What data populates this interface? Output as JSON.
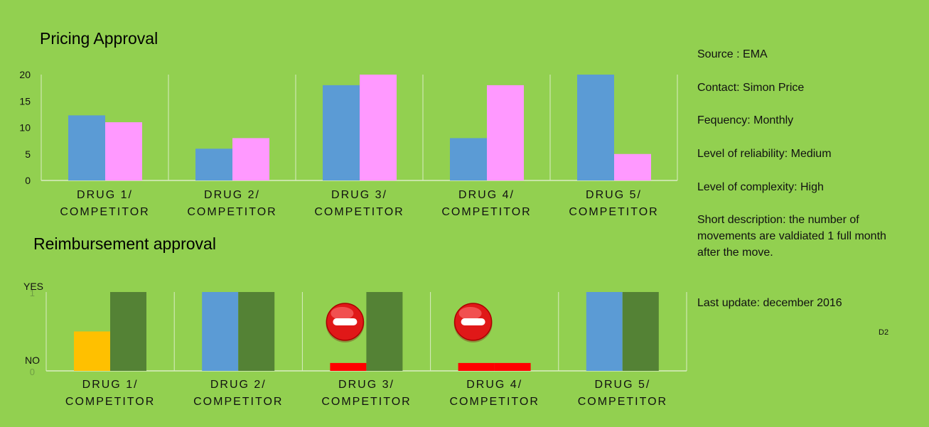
{
  "chart_data": [
    {
      "type": "bar",
      "title": "Pricing Approval",
      "categories": [
        "DRUG 1/ COMPETITOR",
        "DRUG 2/ COMPETITOR",
        "DRUG 3/ COMPETITOR",
        "DRUG 4/ COMPETITOR",
        "DRUG 5/ COMPETITOR"
      ],
      "category_lines": [
        [
          "DRUG 1/",
          "COMPETITOR"
        ],
        [
          "DRUG 2/",
          "COMPETITOR"
        ],
        [
          "DRUG 3/",
          "COMPETITOR"
        ],
        [
          "DRUG 4/",
          "COMPETITOR"
        ],
        [
          "DRUG 5/",
          "COMPETITOR"
        ]
      ],
      "series": [
        {
          "values": [
            12.3,
            6,
            18,
            8,
            20
          ],
          "color": "#5b9bd5"
        },
        {
          "values": [
            11,
            8,
            20,
            18,
            5
          ],
          "color": "#ff99ff"
        }
      ],
      "yticks": [
        0,
        5,
        10,
        15,
        20
      ],
      "ylim": [
        0,
        20
      ],
      "grid": false
    },
    {
      "type": "bar",
      "title": "Reimbursement approval",
      "categories": [
        "DRUG 1/ COMPETITOR",
        "DRUG 2/ COMPETITOR",
        "DRUG 3/ COMPETITOR",
        "DRUG 4/ COMPETITOR",
        "DRUG 5/ COMPETITOR"
      ],
      "category_lines": [
        [
          "DRUG 1/",
          "COMPETITOR"
        ],
        [
          "DRUG 2/",
          "COMPETITOR"
        ],
        [
          "DRUG 3/",
          "COMPETITOR"
        ],
        [
          "DRUG 4/",
          "COMPETITOR"
        ],
        [
          "DRUG 5/",
          "COMPETITOR"
        ]
      ],
      "series": [
        {
          "values": [
            0.5,
            1,
            0.1,
            0.1,
            1
          ],
          "colors": [
            "#ffc000",
            "#5b9bd5",
            "#ff0000",
            "#ff0000",
            "#5b9bd5"
          ]
        },
        {
          "values": [
            1,
            1,
            1,
            0.1,
            1
          ],
          "colors": [
            "#548235",
            "#548235",
            "#548235",
            "#ff0000",
            "#548235"
          ]
        }
      ],
      "rejected_markers": [
        false,
        false,
        true,
        true,
        false
      ],
      "ylim": [
        0,
        1
      ],
      "yticks": [
        0,
        1
      ],
      "ylabels": {
        "top": "YES",
        "bottom": "NO"
      },
      "grid": false
    }
  ],
  "info": {
    "source": "Source : EMA",
    "contact": "Contact: Simon Price",
    "frequency": "Fequency: Monthly",
    "reliability": "Level of reliability: Medium",
    "complexity": "Level of complexity:  High",
    "description": "Short description:  the number  of movements are valdiated 1 full month after the move.",
    "last_update": "Last update:  december  2016",
    "footnote": "D2"
  }
}
